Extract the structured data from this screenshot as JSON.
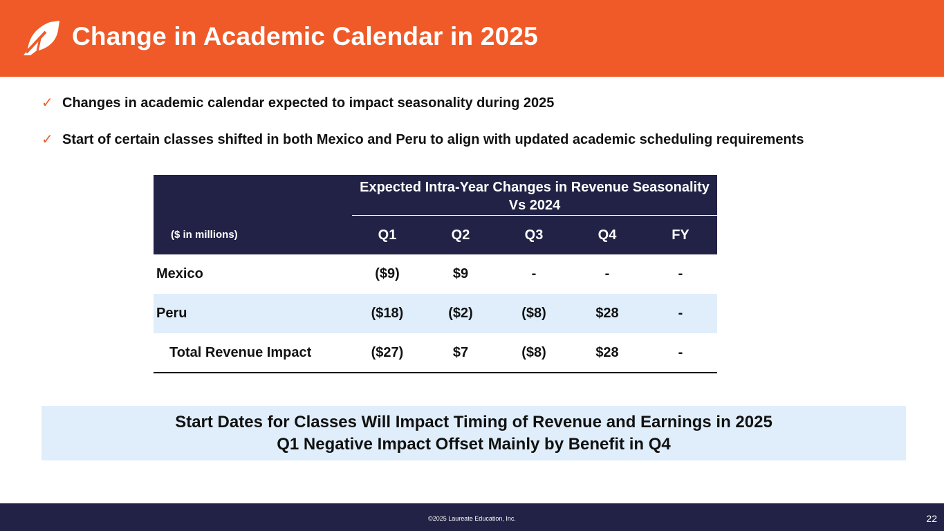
{
  "header": {
    "title": "Change in Academic Calendar in 2025",
    "logo_icon": "leaf-logo-icon",
    "background": "#f05a28"
  },
  "bullets": [
    "Changes in academic calendar expected to impact seasonality during 2025",
    "Start of certain classes shifted in both Mexico and Peru to align with updated academic scheduling requirements"
  ],
  "bullet_icon": "✓",
  "table": {
    "super_header": "Expected Intra-Year Changes in Revenue Seasonality Vs 2024",
    "units_label": "($ in millions)",
    "columns": [
      "Q1",
      "Q2",
      "Q3",
      "Q4",
      "FY"
    ],
    "rows": [
      {
        "label": "Mexico",
        "values": [
          "($9)",
          "$9",
          "-",
          "-",
          "-"
        ]
      },
      {
        "label": "Peru",
        "values": [
          "($18)",
          "($2)",
          "($8)",
          "$28",
          "-"
        ]
      },
      {
        "label": "Total Revenue Impact",
        "values": [
          "($27)",
          "$7",
          "($8)",
          "$28",
          "-"
        ]
      }
    ],
    "header_color": "#212245",
    "alt_row_color": "#e0eefc"
  },
  "callout": {
    "line1": "Start Dates for Classes Will Impact Timing of Revenue and Earnings in 2025",
    "line2": "Q1 Negative Impact Offset Mainly by Benefit in Q4"
  },
  "footer": {
    "copyright": "©2025 Laureate Education, Inc.",
    "page_number": "22"
  }
}
